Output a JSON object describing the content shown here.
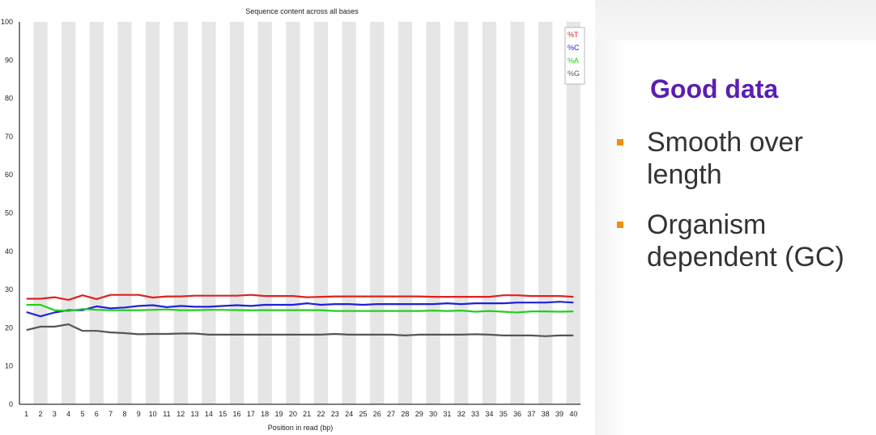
{
  "chart_data": {
    "type": "line",
    "title": "Sequence content across all bases",
    "xlabel": "Position in read (bp)",
    "ylabel": "",
    "ylim": [
      0,
      100
    ],
    "yticks": [
      0,
      10,
      20,
      30,
      40,
      50,
      60,
      70,
      80,
      90,
      100
    ],
    "x": [
      1,
      2,
      3,
      4,
      5,
      6,
      7,
      8,
      9,
      10,
      11,
      12,
      13,
      14,
      15,
      16,
      17,
      18,
      19,
      20,
      21,
      22,
      23,
      24,
      25,
      26,
      27,
      28,
      29,
      30,
      31,
      32,
      33,
      34,
      35,
      36,
      37,
      38,
      39,
      40
    ],
    "grid": "alternating vertical bands",
    "legend_position": "top-right",
    "series": [
      {
        "name": "%T",
        "color": "#e02020",
        "values": [
          27.6,
          27.6,
          28.0,
          27.3,
          28.5,
          27.5,
          28.6,
          28.6,
          28.6,
          27.9,
          28.2,
          28.2,
          28.4,
          28.4,
          28.4,
          28.4,
          28.6,
          28.3,
          28.3,
          28.3,
          28.0,
          28.1,
          28.2,
          28.2,
          28.2,
          28.2,
          28.2,
          28.2,
          28.2,
          28.1,
          28.1,
          28.1,
          28.1,
          28.1,
          28.5,
          28.5,
          28.3,
          28.3,
          28.3,
          28.1
        ]
      },
      {
        "name": "%C",
        "color": "#2020d8",
        "values": [
          24.1,
          23.0,
          24.0,
          24.6,
          24.6,
          25.6,
          25.1,
          25.3,
          25.7,
          25.9,
          25.4,
          25.7,
          25.5,
          25.5,
          25.7,
          25.9,
          25.7,
          26.0,
          26.0,
          26.0,
          26.4,
          26.0,
          26.2,
          26.2,
          26.0,
          26.2,
          26.2,
          26.2,
          26.2,
          26.2,
          26.4,
          26.2,
          26.4,
          26.4,
          26.4,
          26.6,
          26.6,
          26.6,
          26.8,
          26.6
        ]
      },
      {
        "name": "%A",
        "color": "#20d020",
        "values": [
          26.0,
          26.0,
          24.6,
          24.4,
          24.9,
          24.7,
          24.6,
          24.6,
          24.6,
          24.7,
          24.8,
          24.6,
          24.6,
          24.7,
          24.7,
          24.6,
          24.6,
          24.6,
          24.6,
          24.6,
          24.6,
          24.6,
          24.4,
          24.4,
          24.4,
          24.4,
          24.4,
          24.4,
          24.4,
          24.5,
          24.4,
          24.5,
          24.2,
          24.4,
          24.2,
          24.0,
          24.3,
          24.3,
          24.2,
          24.3
        ]
      },
      {
        "name": "%G",
        "color": "#555555",
        "values": [
          19.4,
          20.3,
          20.3,
          20.9,
          19.2,
          19.2,
          18.8,
          18.6,
          18.3,
          18.4,
          18.4,
          18.5,
          18.5,
          18.2,
          18.2,
          18.2,
          18.2,
          18.2,
          18.2,
          18.2,
          18.2,
          18.2,
          18.4,
          18.2,
          18.2,
          18.2,
          18.2,
          18.0,
          18.2,
          18.2,
          18.2,
          18.2,
          18.3,
          18.2,
          18.0,
          18.0,
          18.0,
          17.8,
          18.0,
          18.0
        ]
      }
    ]
  },
  "panel": {
    "title": "Good data",
    "title_color": "#5a1eb4",
    "bullet_color": "#f0900a",
    "bullets": [
      {
        "text": "Smooth over length"
      },
      {
        "text": "Organism dependent (GC)"
      }
    ]
  }
}
